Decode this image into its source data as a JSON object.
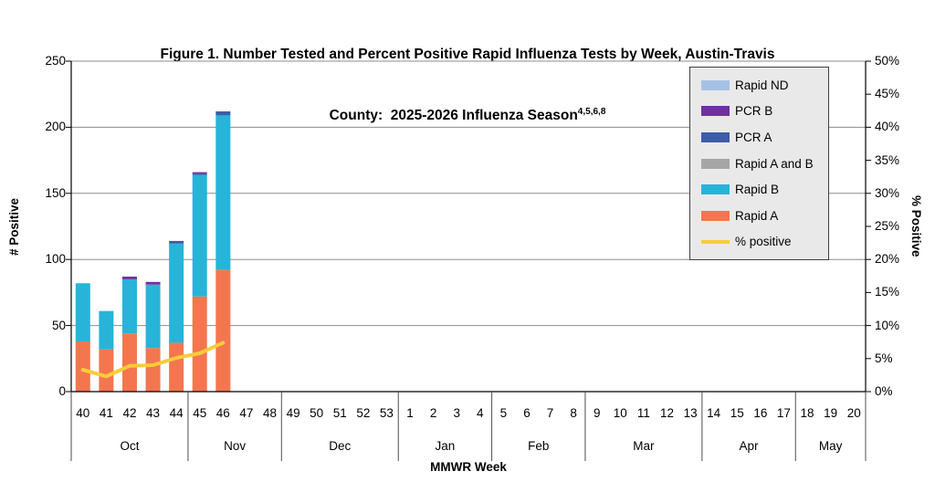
{
  "title": {
    "line1": "Figure 1. Number Tested and Percent Positive Rapid Influenza Tests by Week, Austin-Travis",
    "line2_prefix": "County:  2025-2026 Influenza Season",
    "superscript": "4,5,6,8"
  },
  "chart_data": {
    "type": "bar",
    "subtype": "stacked-bars-with-percent-line",
    "title": "Figure 1. Number Tested and Percent Positive Rapid Influenza Tests by Week, Austin-Travis County: 2025-2026 Influenza Season",
    "xlabel": "MMWR Week",
    "ylabel_left": "# Positive",
    "ylabel_right": "% Positive",
    "ylim_left": [
      0,
      250
    ],
    "ytick_step_left": 50,
    "ylim_right_pct": [
      0,
      50
    ],
    "ytick_step_right_pct": 5,
    "gridlines_at_left_values": [
      0,
      50,
      100,
      150,
      200,
      250
    ],
    "legend_position": "top-right-inside",
    "categories": [
      40,
      41,
      42,
      43,
      44,
      45,
      46,
      47,
      48,
      49,
      50,
      51,
      52,
      53,
      1,
      2,
      3,
      4,
      5,
      6,
      7,
      8,
      9,
      10,
      11,
      12,
      13,
      14,
      15,
      16,
      17,
      18,
      19,
      20
    ],
    "month_groups": [
      {
        "label": "Oct",
        "span": 5
      },
      {
        "label": "Nov",
        "span": 4
      },
      {
        "label": "Dec",
        "span": 5
      },
      {
        "label": "Jan",
        "span": 4
      },
      {
        "label": "Feb",
        "span": 4
      },
      {
        "label": "Mar",
        "span": 5
      },
      {
        "label": "Apr",
        "span": 4
      },
      {
        "label": "May",
        "span": 3
      }
    ],
    "series": [
      {
        "name": "Rapid A",
        "color": "#F4764F",
        "values": [
          38,
          32,
          44,
          33,
          37,
          72,
          92
        ]
      },
      {
        "name": "Rapid B",
        "color": "#27B4D8",
        "values": [
          44,
          29,
          41,
          48,
          75,
          92,
          117
        ]
      },
      {
        "name": "Rapid A and B",
        "color": "#A6A6A6",
        "values": [
          0,
          0,
          0,
          0,
          0,
          0,
          0
        ]
      },
      {
        "name": "PCR A",
        "color": "#3D5CA9",
        "values": [
          0,
          0,
          0,
          0,
          2,
          1,
          3
        ]
      },
      {
        "name": "PCR B",
        "color": "#7030A0",
        "values": [
          0,
          0,
          2,
          2,
          0,
          1,
          0
        ]
      },
      {
        "name": "Rapid ND",
        "color": "#A6C1E6",
        "values": [
          0,
          0,
          0,
          0,
          0,
          0,
          0
        ]
      }
    ],
    "line_series": {
      "name": "% positive",
      "color": "#F8CD3A",
      "values_pct": [
        3.3,
        2.3,
        3.9,
        4.0,
        5.1,
        5.8,
        7.4
      ]
    }
  },
  "axes": {
    "left_ticks": [
      {
        "label": "250",
        "v": 250
      },
      {
        "label": "200",
        "v": 200
      },
      {
        "label": "150",
        "v": 150
      },
      {
        "label": "100",
        "v": 100
      },
      {
        "label": "50",
        "v": 50
      },
      {
        "label": "0",
        "v": 0
      }
    ],
    "right_ticks": [
      {
        "label": "50%",
        "v": 50
      },
      {
        "label": "45%",
        "v": 45
      },
      {
        "label": "40%",
        "v": 40
      },
      {
        "label": "35%",
        "v": 35
      },
      {
        "label": "30%",
        "v": 30
      },
      {
        "label": "25%",
        "v": 25
      },
      {
        "label": "20%",
        "v": 20
      },
      {
        "label": "15%",
        "v": 15
      },
      {
        "label": "10%",
        "v": 10
      },
      {
        "label": "5%",
        "v": 5
      },
      {
        "label": "0%",
        "v": 0
      }
    ]
  },
  "legend": {
    "entries": [
      {
        "label": "Rapid ND",
        "color": "#A6C1E6",
        "type": "box"
      },
      {
        "label": "PCR B",
        "color": "#7030A0",
        "type": "box"
      },
      {
        "label": "PCR A",
        "color": "#3D5CA9",
        "type": "box"
      },
      {
        "label": "Rapid A and B",
        "color": "#A6A6A6",
        "type": "box"
      },
      {
        "label": "Rapid B",
        "color": "#27B4D8",
        "type": "box"
      },
      {
        "label": "Rapid A",
        "color": "#F4764F",
        "type": "box"
      },
      {
        "label": "% positive",
        "color": "#F8CD3A",
        "type": "line"
      }
    ]
  },
  "colors": {
    "gridline": "#8C8C8C",
    "axis_line": "#000000",
    "divider_line": "#4d4d4d",
    "legend_bg": "#E9E9E9",
    "legend_border": "#3F3F3F"
  }
}
